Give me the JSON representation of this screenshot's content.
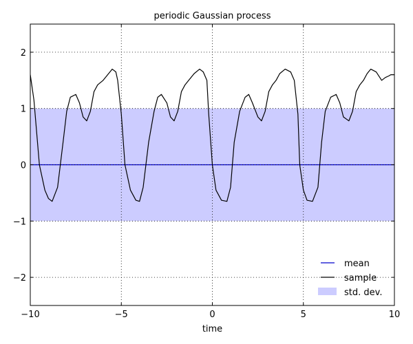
{
  "chart_data": {
    "type": "line",
    "title": "periodic Gaussian process",
    "xlabel": "time",
    "ylabel": "",
    "xlim": [
      -10,
      10
    ],
    "ylim": [
      -2.5,
      2.5
    ],
    "xticks": [
      -10,
      -5,
      0,
      5,
      10
    ],
    "xtick_labels": [
      "−10",
      "−5",
      "0",
      "5",
      "10"
    ],
    "yticks": [
      -2,
      -1,
      0,
      1,
      2
    ],
    "ytick_labels": [
      "−2",
      "−1",
      "0",
      "1",
      "2"
    ],
    "grid": true,
    "legend_position": "lower-right",
    "colors": {
      "mean": "#0000cc",
      "sample": "#000000",
      "band": "#ccccff"
    },
    "band": {
      "name": "std. dev.",
      "lower": -1,
      "upper": 1
    },
    "series": [
      {
        "name": "mean",
        "x": [
          -10,
          10
        ],
        "y": [
          0,
          0
        ]
      },
      {
        "name": "sample",
        "x": [
          -10,
          -9.8,
          -9.5,
          -9.2,
          -9.0,
          -8.8,
          -8.5,
          -8.2,
          -8.0,
          -7.8,
          -7.5,
          -7.3,
          -7.1,
          -6.9,
          -6.7,
          -6.5,
          -6.3,
          -6.0,
          -5.7,
          -5.5,
          -5.3,
          -5.2,
          -5.0,
          -4.8,
          -4.5,
          -4.2,
          -4.0,
          -3.8,
          -3.5,
          -3.2,
          -3.0,
          -2.8,
          -2.5,
          -2.3,
          -2.1,
          -1.9,
          -1.7,
          -1.5,
          -1.3,
          -1.0,
          -0.7,
          -0.5,
          -0.3,
          -0.2,
          0.0,
          0.2,
          0.5,
          0.8,
          1.0,
          1.2,
          1.5,
          1.8,
          2.0,
          2.2,
          2.5,
          2.7,
          2.9,
          3.1,
          3.3,
          3.5,
          3.7,
          4.0,
          4.3,
          4.5,
          4.7,
          4.8,
          5.0,
          5.2,
          5.5,
          5.8,
          6.0,
          6.2,
          6.5,
          6.8,
          7.0,
          7.2,
          7.5,
          7.7,
          7.9,
          8.1,
          8.3,
          8.5,
          8.7,
          9.0,
          9.3,
          9.5,
          9.7,
          9.8,
          10.0
        ],
        "y": [
          1.6,
          1.15,
          0.0,
          -0.45,
          -0.6,
          -0.65,
          -0.4,
          0.4,
          0.95,
          1.2,
          1.25,
          1.1,
          0.85,
          0.78,
          0.95,
          1.3,
          1.42,
          1.5,
          1.62,
          1.7,
          1.65,
          1.5,
          0.9,
          0.0,
          -0.45,
          -0.63,
          -0.65,
          -0.4,
          0.4,
          0.95,
          1.2,
          1.25,
          1.1,
          0.85,
          0.78,
          0.95,
          1.3,
          1.42,
          1.5,
          1.62,
          1.7,
          1.65,
          1.5,
          0.9,
          0.0,
          -0.45,
          -0.63,
          -0.65,
          -0.4,
          0.4,
          0.95,
          1.2,
          1.25,
          1.1,
          0.85,
          0.78,
          0.95,
          1.3,
          1.42,
          1.5,
          1.62,
          1.7,
          1.65,
          1.5,
          0.9,
          0.0,
          -0.45,
          -0.63,
          -0.65,
          -0.4,
          0.4,
          0.95,
          1.2,
          1.25,
          1.1,
          0.85,
          0.78,
          0.95,
          1.3,
          1.42,
          1.5,
          1.62,
          1.7,
          1.65,
          1.5,
          1.55,
          1.58,
          1.6,
          1.6
        ]
      }
    ]
  }
}
